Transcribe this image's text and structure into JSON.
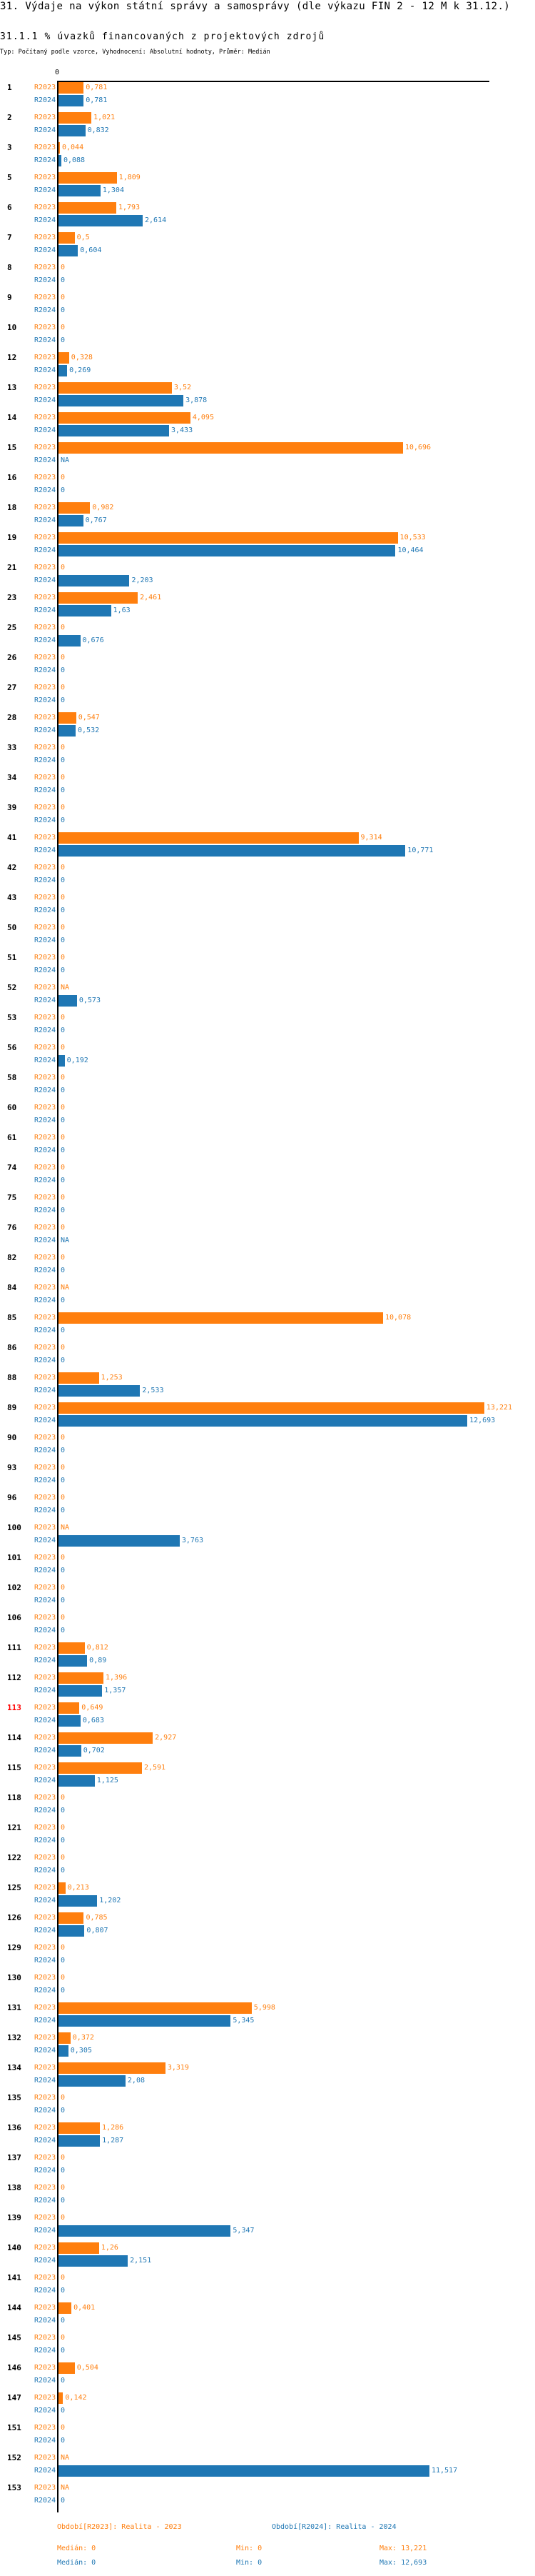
{
  "header": {
    "title": "31. Výdaje na výkon státní správy a samosprávy (dle výkazu FIN 2 - 12 M k 31.12.)",
    "subtitle": "31.1.1 % úvazků financovaných z projektových zdrojů",
    "meta": "Typ: Počítaný podle vzorce, Vyhodnocení: Absolutní hodnoty, Průměr: Medián"
  },
  "chart_data": {
    "type": "bar",
    "orientation": "horizontal",
    "x_tick_labels": [
      "0"
    ],
    "xlim": [
      0,
      13.4
    ],
    "grid": false,
    "na_label": "NA",
    "series_colors": {
      "R2023": "#ff7f0e",
      "R2024": "#1f77b4"
    },
    "highlight_color": "#ff0000",
    "series_labels": [
      "R2023",
      "R2024"
    ],
    "groups": [
      {
        "label": "1",
        "R2023": 0.781,
        "R2024": 0.781
      },
      {
        "label": "2",
        "R2023": 1.021,
        "R2024": 0.832
      },
      {
        "label": "3",
        "R2023": 0.044,
        "R2024": 0.088
      },
      {
        "label": "5",
        "R2023": 1.809,
        "R2024": 1.304
      },
      {
        "label": "6",
        "R2023": 1.793,
        "R2024": 2.614
      },
      {
        "label": "7",
        "R2023": 0.5,
        "R2024": 0.604
      },
      {
        "label": "8",
        "R2023": 0,
        "R2024": 0
      },
      {
        "label": "9",
        "R2023": 0,
        "R2024": 0
      },
      {
        "label": "10",
        "R2023": 0,
        "R2024": 0
      },
      {
        "label": "12",
        "R2023": 0.328,
        "R2024": 0.269
      },
      {
        "label": "13",
        "R2023": 3.52,
        "R2024": 3.878
      },
      {
        "label": "14",
        "R2023": 4.095,
        "R2024": 3.433
      },
      {
        "label": "15",
        "R2023": 10.696,
        "R2024": null
      },
      {
        "label": "16",
        "R2023": 0,
        "R2024": 0
      },
      {
        "label": "18",
        "R2023": 0.982,
        "R2024": 0.767
      },
      {
        "label": "19",
        "R2023": 10.533,
        "R2024": 10.464
      },
      {
        "label": "21",
        "R2023": 0,
        "R2024": 2.203
      },
      {
        "label": "23",
        "R2023": 2.461,
        "R2024": 1.63
      },
      {
        "label": "25",
        "R2023": 0,
        "R2024": 0.676
      },
      {
        "label": "26",
        "R2023": 0,
        "R2024": 0
      },
      {
        "label": "27",
        "R2023": 0,
        "R2024": 0
      },
      {
        "label": "28",
        "R2023": 0.547,
        "R2024": 0.532
      },
      {
        "label": "33",
        "R2023": 0,
        "R2024": 0
      },
      {
        "label": "34",
        "R2023": 0,
        "R2024": 0
      },
      {
        "label": "39",
        "R2023": 0,
        "R2024": 0
      },
      {
        "label": "41",
        "R2023": 9.314,
        "R2024": 10.771
      },
      {
        "label": "42",
        "R2023": 0,
        "R2024": 0
      },
      {
        "label": "43",
        "R2023": 0,
        "R2024": 0
      },
      {
        "label": "50",
        "R2023": 0,
        "R2024": 0
      },
      {
        "label": "51",
        "R2023": 0,
        "R2024": 0
      },
      {
        "label": "52",
        "R2023": null,
        "R2024": 0.573
      },
      {
        "label": "53",
        "R2023": 0,
        "R2024": 0
      },
      {
        "label": "56",
        "R2023": 0,
        "R2024": 0.192
      },
      {
        "label": "58",
        "R2023": 0,
        "R2024": 0
      },
      {
        "label": "60",
        "R2023": 0,
        "R2024": 0
      },
      {
        "label": "61",
        "R2023": 0,
        "R2024": 0
      },
      {
        "label": "74",
        "R2023": 0,
        "R2024": 0
      },
      {
        "label": "75",
        "R2023": 0,
        "R2024": 0
      },
      {
        "label": "76",
        "R2023": 0,
        "R2024": null
      },
      {
        "label": "82",
        "R2023": 0,
        "R2024": 0
      },
      {
        "label": "84",
        "R2023": null,
        "R2024": 0
      },
      {
        "label": "85",
        "R2023": 10.078,
        "R2024": 0
      },
      {
        "label": "86",
        "R2023": 0,
        "R2024": 0
      },
      {
        "label": "88",
        "R2023": 1.253,
        "R2024": 2.533
      },
      {
        "label": "89",
        "R2023": 13.221,
        "R2024": 12.693
      },
      {
        "label": "90",
        "R2023": 0,
        "R2024": 0
      },
      {
        "label": "93",
        "R2023": 0,
        "R2024": 0
      },
      {
        "label": "96",
        "R2023": 0,
        "R2024": 0
      },
      {
        "label": "100",
        "R2023": null,
        "R2024": 3.763
      },
      {
        "label": "101",
        "R2023": 0,
        "R2024": 0
      },
      {
        "label": "102",
        "R2023": 0,
        "R2024": 0
      },
      {
        "label": "106",
        "R2023": 0,
        "R2024": 0
      },
      {
        "label": "111",
        "R2023": 0.812,
        "R2024": 0.89
      },
      {
        "label": "112",
        "R2023": 1.396,
        "R2024": 1.357
      },
      {
        "label": "113",
        "R2023": 0.649,
        "R2024": 0.683,
        "highlight": true
      },
      {
        "label": "114",
        "R2023": 2.927,
        "R2024": 0.702
      },
      {
        "label": "115",
        "R2023": 2.591,
        "R2024": 1.125
      },
      {
        "label": "118",
        "R2023": 0,
        "R2024": 0
      },
      {
        "label": "121",
        "R2023": 0,
        "R2024": 0
      },
      {
        "label": "122",
        "R2023": 0,
        "R2024": 0
      },
      {
        "label": "125",
        "R2023": 0.213,
        "R2024": 1.202
      },
      {
        "label": "126",
        "R2023": 0.785,
        "R2024": 0.807
      },
      {
        "label": "129",
        "R2023": 0,
        "R2024": 0
      },
      {
        "label": "130",
        "R2023": 0,
        "R2024": 0
      },
      {
        "label": "131",
        "R2023": 5.998,
        "R2024": 5.345
      },
      {
        "label": "132",
        "R2023": 0.372,
        "R2024": 0.305
      },
      {
        "label": "134",
        "R2023": 3.319,
        "R2024": 2.08
      },
      {
        "label": "135",
        "R2023": 0,
        "R2024": 0
      },
      {
        "label": "136",
        "R2023": 1.286,
        "R2024": 1.287
      },
      {
        "label": "137",
        "R2023": 0,
        "R2024": 0
      },
      {
        "label": "138",
        "R2023": 0,
        "R2024": 0
      },
      {
        "label": "139",
        "R2023": 0,
        "R2024": 5.347
      },
      {
        "label": "140",
        "R2023": 1.26,
        "R2024": 2.151
      },
      {
        "label": "141",
        "R2023": 0,
        "R2024": 0
      },
      {
        "label": "144",
        "R2023": 0.401,
        "R2024": 0
      },
      {
        "label": "145",
        "R2023": 0,
        "R2024": 0
      },
      {
        "label": "146",
        "R2023": 0.504,
        "R2024": 0
      },
      {
        "label": "147",
        "R2023": 0.142,
        "R2024": 0
      },
      {
        "label": "151",
        "R2023": 0,
        "R2024": 0
      },
      {
        "label": "152",
        "R2023": null,
        "R2024": 11.517
      },
      {
        "label": "153",
        "R2023": null,
        "R2024": 0
      }
    ]
  },
  "legend": {
    "r2023": "Období[R2023]: Realita - 2023",
    "r2024": "Období[R2024]: Realita - 2024"
  },
  "stats": {
    "r2023": {
      "median": "Medián: 0",
      "min": "Min: 0",
      "max": "Max: 13,221"
    },
    "r2024": {
      "median": "Medián: 0",
      "min": "Min: 0",
      "max": "Max: 12,693"
    }
  }
}
